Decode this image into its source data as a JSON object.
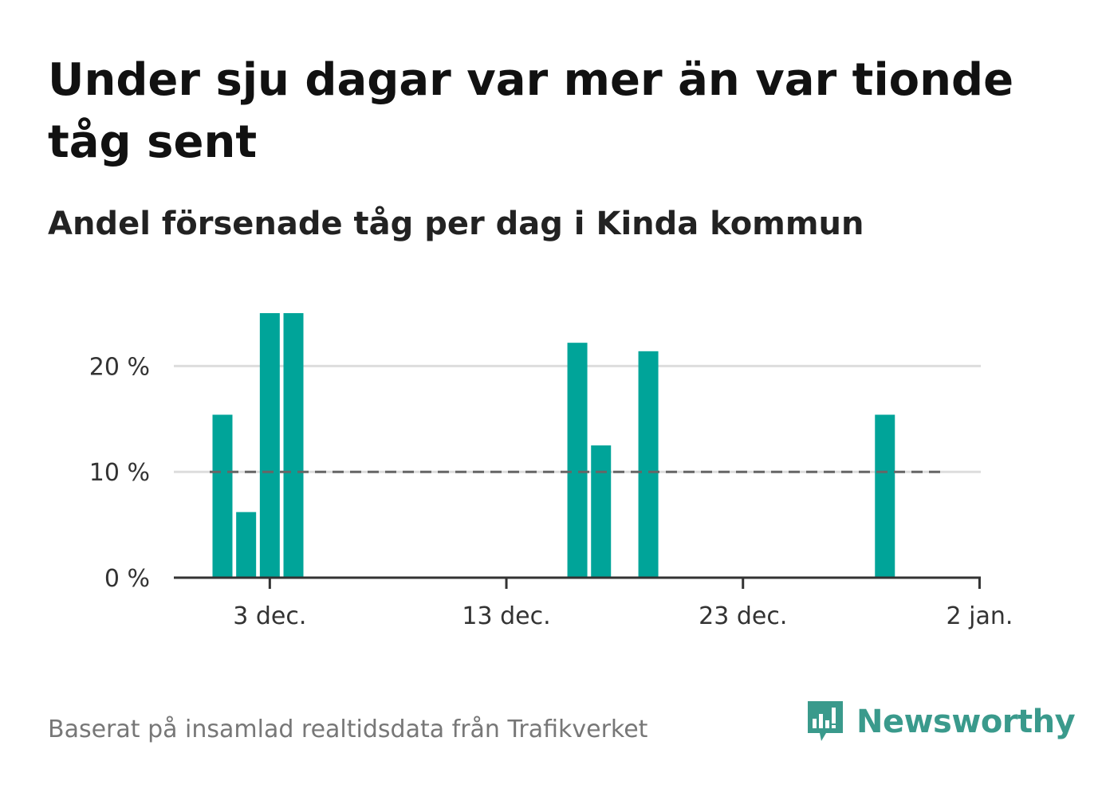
{
  "header": {
    "title": "Under sju dagar var mer än var tionde tåg sent",
    "subtitle": "Andel försenade tåg per dag i Kinda kommun"
  },
  "footer": {
    "source": "Baserat på insamlad realtidsdata från Trafikverket",
    "brand": "Newsworthy"
  },
  "colors": {
    "bar": "#00a499",
    "reference_line": "#666666",
    "grid": "#dddddd",
    "axis": "#333333",
    "brand": "#3a9a8c"
  },
  "chart_data": {
    "type": "bar",
    "title": "Under sju dagar var mer än var tionde tåg sent",
    "subtitle": "Andel försenade tåg per dag i Kinda kommun",
    "xlabel": "",
    "ylabel": "",
    "x_start": "2023-12-01",
    "x": [
      "1 dec.",
      "2 dec.",
      "3 dec.",
      "4 dec.",
      "16 dec.",
      "17 dec.",
      "19 dec.",
      "29 dec."
    ],
    "values": [
      15.4,
      6.2,
      25.0,
      25.0,
      22.2,
      12.5,
      21.4,
      15.4
    ],
    "ylim": [
      0,
      25
    ],
    "yticks": [
      0,
      10,
      20
    ],
    "ytick_labels": [
      "0 %",
      "10 %",
      "20 %"
    ],
    "xticks": [
      "3 dec.",
      "13 dec.",
      "23 dec.",
      "2 jan."
    ],
    "reference_line": {
      "value": 10,
      "style": "dashed"
    },
    "grid": true,
    "legend": "none"
  }
}
